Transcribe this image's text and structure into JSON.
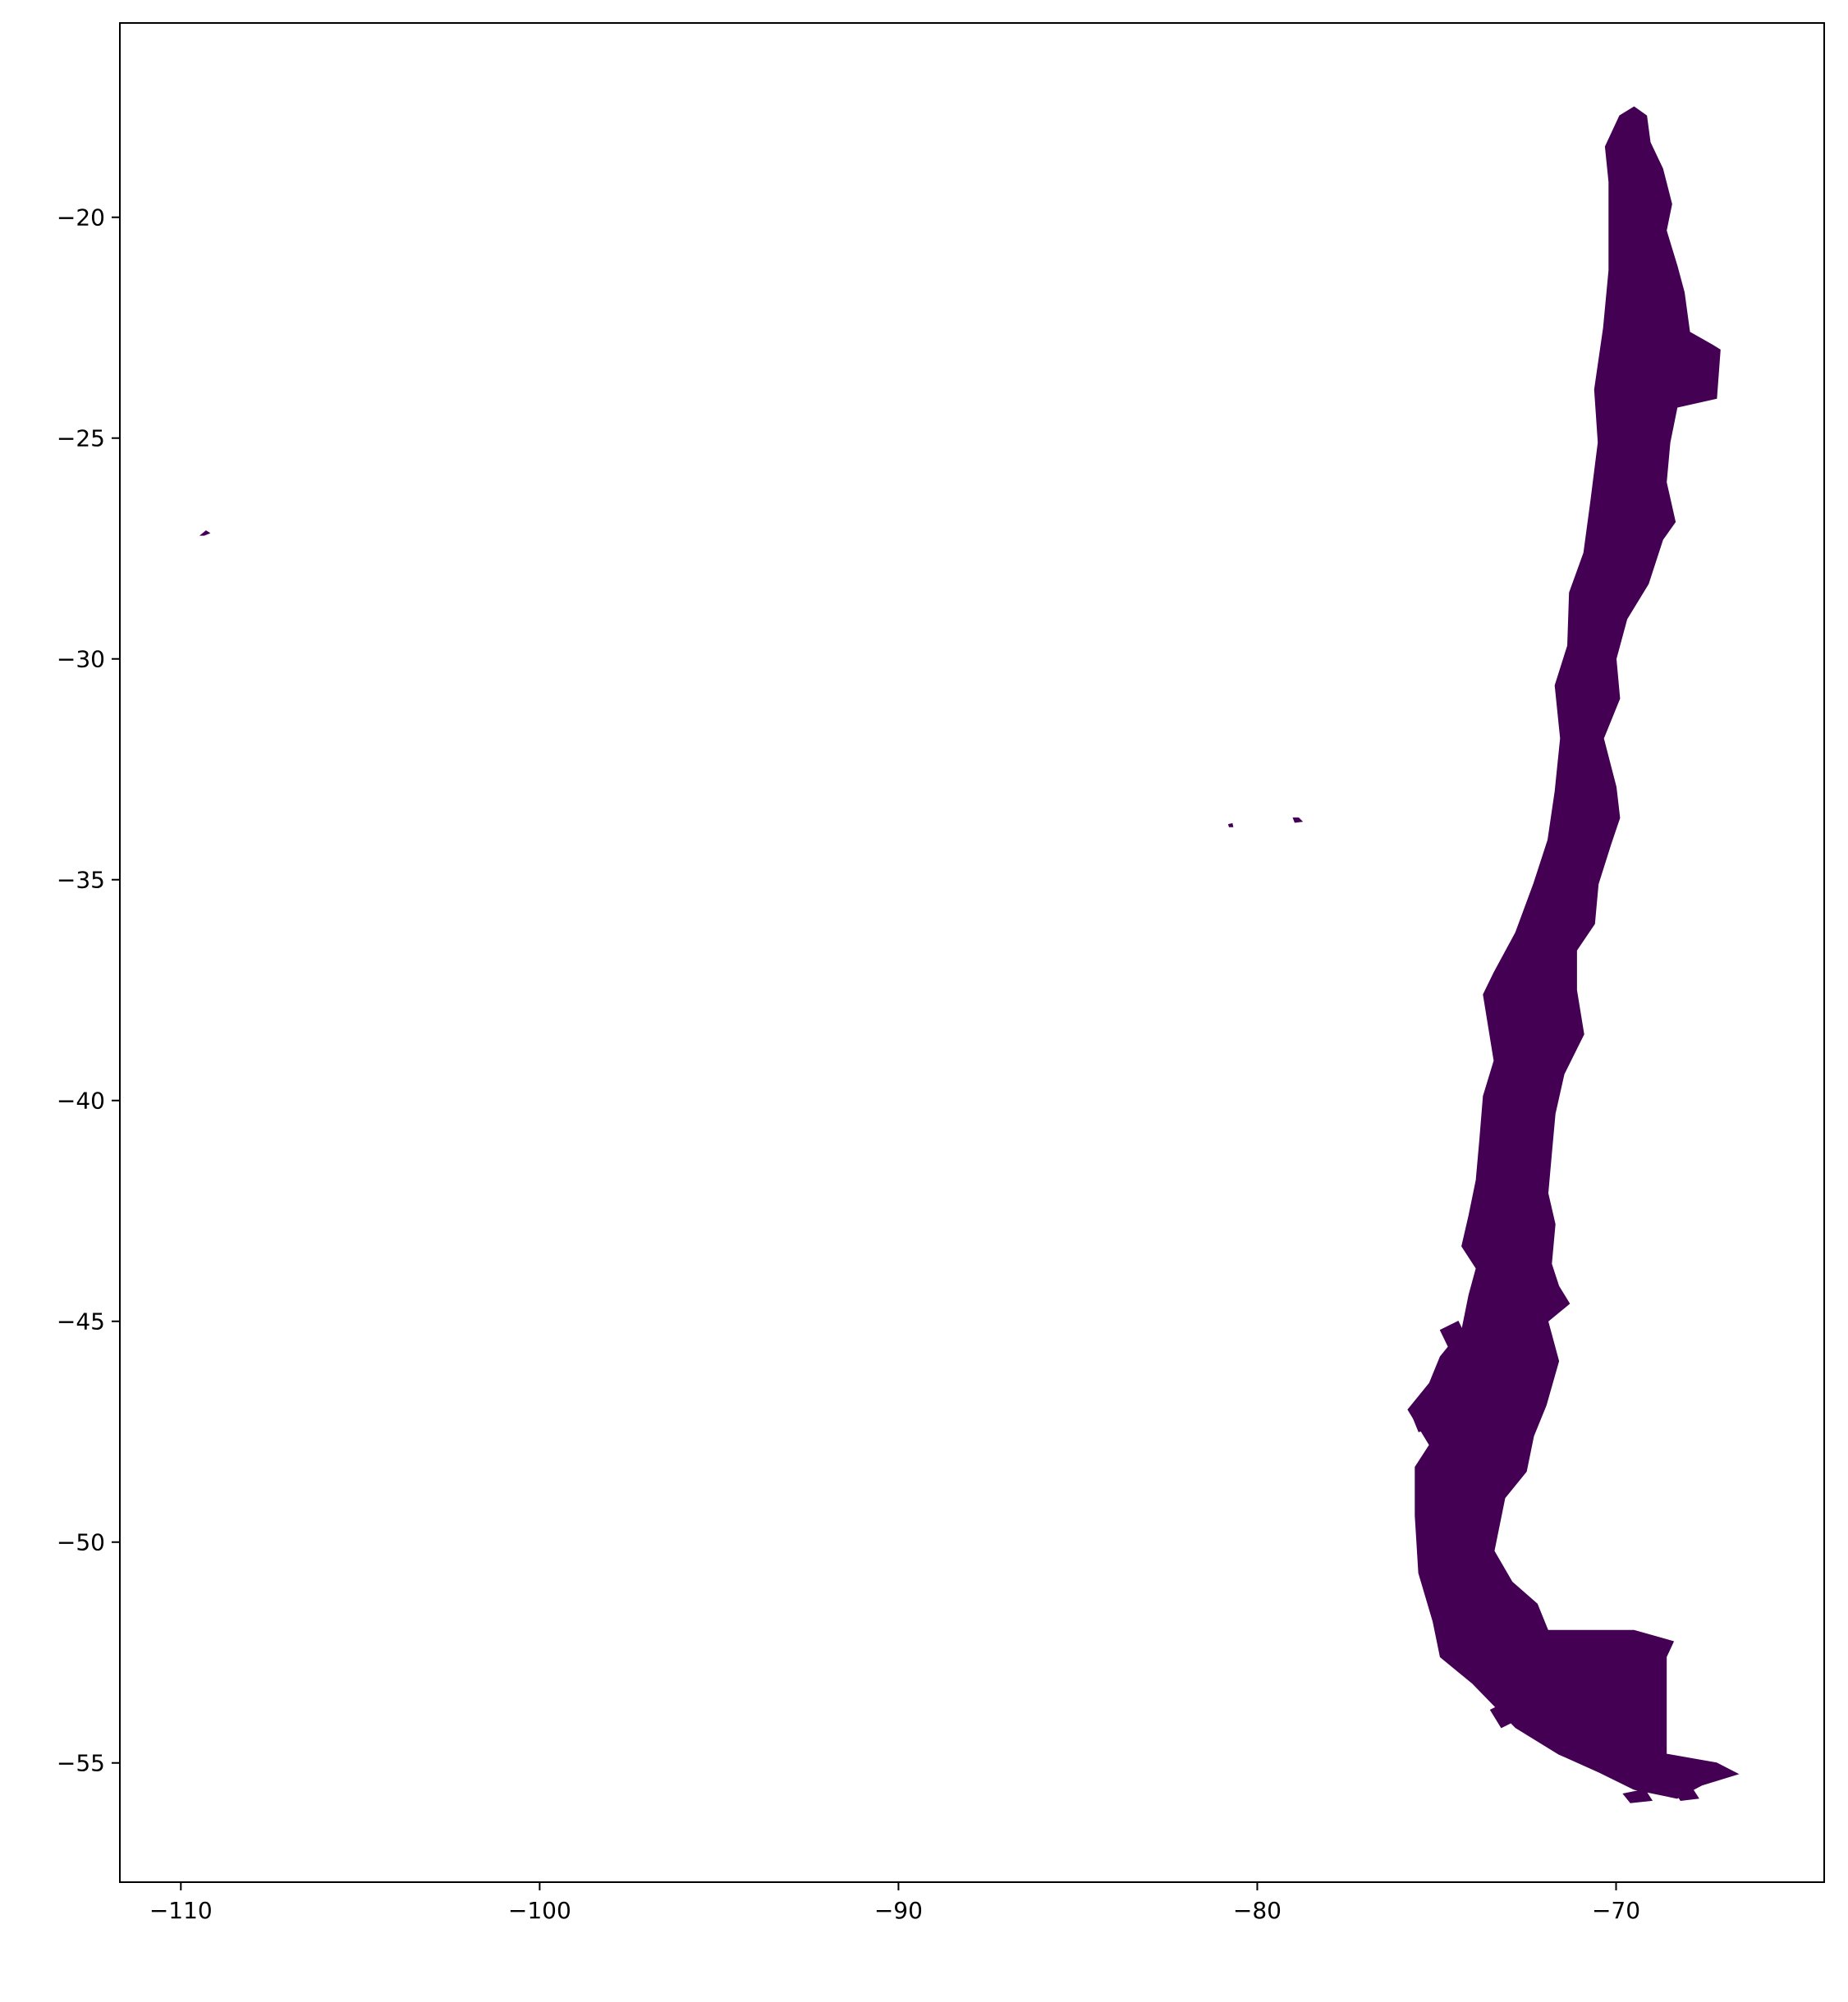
{
  "chart_data": {
    "type": "map",
    "subject": "Chile",
    "fill_color": "#440154",
    "background": "#ffffff",
    "xlim": [
      -111.7,
      -64.2
    ],
    "ylim": [
      -57.7,
      -15.6
    ],
    "grid": false,
    "x_ticks": [
      {
        "value": -110,
        "label": "−110"
      },
      {
        "value": -100,
        "label": "−100"
      },
      {
        "value": -90,
        "label": "−90"
      },
      {
        "value": -80,
        "label": "−80"
      },
      {
        "value": -70,
        "label": "−70"
      }
    ],
    "y_ticks": [
      {
        "value": -20,
        "label": "−20"
      },
      {
        "value": -25,
        "label": "−25"
      },
      {
        "value": -30,
        "label": "−30"
      },
      {
        "value": -35,
        "label": "−35"
      },
      {
        "value": -40,
        "label": "−40"
      },
      {
        "value": -45,
        "label": "−45"
      },
      {
        "value": -50,
        "label": "−50"
      },
      {
        "value": -55,
        "label": "−55"
      }
    ],
    "regions": [
      {
        "name": "mainland",
        "coords": [
          [
            -69.5,
            -17.5
          ],
          [
            -69.15,
            -17.7
          ],
          [
            -69.05,
            -18.3
          ],
          [
            -68.7,
            -18.9
          ],
          [
            -68.45,
            -19.7
          ],
          [
            -68.6,
            -20.3
          ],
          [
            -68.3,
            -21.1
          ],
          [
            -68.1,
            -21.7
          ],
          [
            -67.95,
            -22.6
          ],
          [
            -67.3,
            -22.9
          ],
          [
            -67.1,
            -23.0
          ],
          [
            -67.2,
            -24.1
          ],
          [
            -68.3,
            -24.3
          ],
          [
            -68.5,
            -25.1
          ],
          [
            -68.6,
            -26.0
          ],
          [
            -68.35,
            -26.9
          ],
          [
            -68.7,
            -27.3
          ],
          [
            -69.1,
            -28.3
          ],
          [
            -69.7,
            -29.1
          ],
          [
            -70.0,
            -30.0
          ],
          [
            -69.9,
            -30.9
          ],
          [
            -70.35,
            -31.8
          ],
          [
            -70.0,
            -32.9
          ],
          [
            -69.9,
            -33.6
          ],
          [
            -70.15,
            -34.2
          ],
          [
            -70.5,
            -35.1
          ],
          [
            -70.6,
            -36.0
          ],
          [
            -71.1,
            -36.6
          ],
          [
            -71.1,
            -37.5
          ],
          [
            -70.9,
            -38.5
          ],
          [
            -71.45,
            -39.4
          ],
          [
            -71.7,
            -40.3
          ],
          [
            -71.8,
            -41.2
          ],
          [
            -71.9,
            -42.1
          ],
          [
            -71.7,
            -42.8
          ],
          [
            -71.8,
            -43.7
          ],
          [
            -71.6,
            -44.2
          ],
          [
            -71.3,
            -44.6
          ],
          [
            -71.9,
            -45.0
          ],
          [
            -71.6,
            -45.9
          ],
          [
            -71.95,
            -46.9
          ],
          [
            -72.3,
            -47.6
          ],
          [
            -72.5,
            -48.4
          ],
          [
            -73.1,
            -49.0
          ],
          [
            -73.4,
            -50.2
          ],
          [
            -72.9,
            -50.9
          ],
          [
            -72.2,
            -51.4
          ],
          [
            -71.9,
            -52.0
          ],
          [
            -69.5,
            -52.0
          ],
          [
            -68.4,
            -52.25
          ],
          [
            -68.6,
            -52.6
          ],
          [
            -68.6,
            -54.8
          ],
          [
            -67.2,
            -55.0
          ],
          [
            -66.6,
            -55.25
          ],
          [
            -67.6,
            -55.5
          ],
          [
            -68.3,
            -55.8
          ],
          [
            -69.5,
            -55.6
          ],
          [
            -70.5,
            -55.2
          ],
          [
            -71.6,
            -54.8
          ],
          [
            -72.8,
            -54.2
          ],
          [
            -74.0,
            -53.2
          ],
          [
            -74.9,
            -52.6
          ],
          [
            -75.1,
            -51.8
          ],
          [
            -75.5,
            -50.7
          ],
          [
            -75.6,
            -49.4
          ],
          [
            -75.6,
            -48.3
          ],
          [
            -75.2,
            -47.8
          ],
          [
            -75.8,
            -47.0
          ],
          [
            -75.2,
            -46.4
          ],
          [
            -74.9,
            -45.8
          ],
          [
            -74.3,
            -45.2
          ],
          [
            -74.1,
            -44.4
          ],
          [
            -73.9,
            -43.8
          ],
          [
            -74.3,
            -43.3
          ],
          [
            -74.1,
            -42.6
          ],
          [
            -73.9,
            -41.8
          ],
          [
            -73.8,
            -40.9
          ],
          [
            -73.7,
            -39.9
          ],
          [
            -73.4,
            -39.1
          ],
          [
            -73.7,
            -37.6
          ],
          [
            -73.4,
            -37.1
          ],
          [
            -72.8,
            -36.2
          ],
          [
            -72.3,
            -35.1
          ],
          [
            -71.9,
            -34.1
          ],
          [
            -71.7,
            -33.0
          ],
          [
            -71.55,
            -31.8
          ],
          [
            -71.7,
            -30.6
          ],
          [
            -71.35,
            -29.7
          ],
          [
            -71.3,
            -28.5
          ],
          [
            -70.9,
            -27.6
          ],
          [
            -70.7,
            -26.4
          ],
          [
            -70.5,
            -25.1
          ],
          [
            -70.6,
            -23.9
          ],
          [
            -70.35,
            -22.5
          ],
          [
            -70.2,
            -21.2
          ],
          [
            -70.2,
            -19.2
          ],
          [
            -70.3,
            -18.4
          ],
          [
            -69.9,
            -17.7
          ]
        ]
      },
      {
        "name": "easter-island",
        "coords": [
          [
            -109.45,
            -27.2
          ],
          [
            -109.3,
            -27.1
          ],
          [
            -109.2,
            -27.15
          ],
          [
            -109.35,
            -27.2
          ]
        ]
      },
      {
        "name": "juan-fernandez-east",
        "coords": [
          [
            -79.0,
            -33.6
          ],
          [
            -78.85,
            -33.6
          ],
          [
            -78.75,
            -33.68
          ],
          [
            -78.95,
            -33.7
          ]
        ]
      },
      {
        "name": "juan-fernandez-west",
        "coords": [
          [
            -80.8,
            -33.75
          ],
          [
            -80.7,
            -33.73
          ],
          [
            -80.68,
            -33.8
          ],
          [
            -80.78,
            -33.8
          ]
        ]
      },
      {
        "name": "island-a",
        "coords": [
          [
            -74.9,
            -45.2
          ],
          [
            -74.4,
            -45.0
          ],
          [
            -74.1,
            -45.5
          ],
          [
            -74.6,
            -45.7
          ]
        ]
      },
      {
        "name": "island-b",
        "coords": [
          [
            -75.7,
            -47.1
          ],
          [
            -75.1,
            -46.9
          ],
          [
            -75.0,
            -47.4
          ],
          [
            -75.5,
            -47.5
          ]
        ]
      },
      {
        "name": "island-c",
        "coords": [
          [
            -75.4,
            -49.2
          ],
          [
            -74.9,
            -49.0
          ],
          [
            -74.8,
            -49.6
          ],
          [
            -75.3,
            -49.8
          ]
        ]
      },
      {
        "name": "island-d",
        "coords": [
          [
            -74.9,
            -51.3
          ],
          [
            -74.5,
            -51.1
          ],
          [
            -74.3,
            -51.6
          ],
          [
            -74.8,
            -51.8
          ]
        ]
      },
      {
        "name": "island-e",
        "coords": [
          [
            -73.5,
            -53.8
          ],
          [
            -73.0,
            -53.6
          ],
          [
            -72.7,
            -54.0
          ],
          [
            -73.2,
            -54.2
          ]
        ]
      },
      {
        "name": "island-f",
        "coords": [
          [
            -69.8,
            -55.7
          ],
          [
            -69.2,
            -55.6
          ],
          [
            -69.0,
            -55.85
          ],
          [
            -69.6,
            -55.9
          ]
        ]
      },
      {
        "name": "island-g",
        "coords": [
          [
            -68.4,
            -55.6
          ],
          [
            -67.9,
            -55.55
          ],
          [
            -67.7,
            -55.8
          ],
          [
            -68.2,
            -55.85
          ]
        ]
      }
    ]
  }
}
